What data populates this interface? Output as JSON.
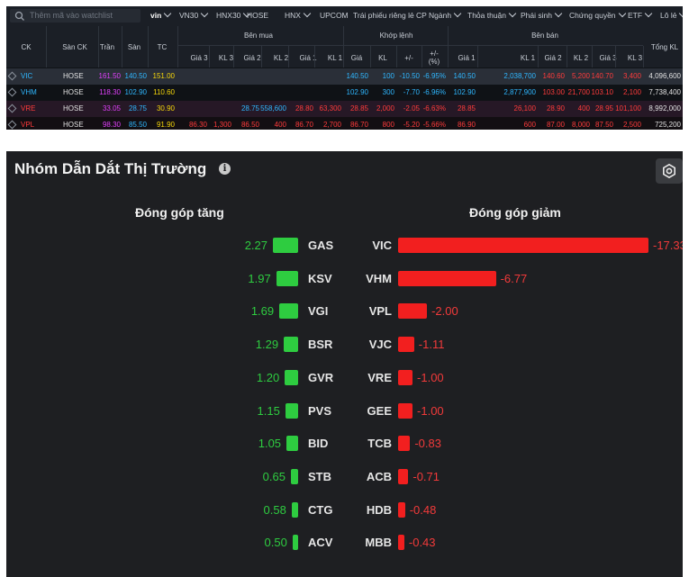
{
  "board": {
    "search": {
      "placeholder": "Thêm mã vào watchlist"
    },
    "menu": [
      {
        "label": "vin",
        "active": true
      },
      {
        "label": "VN30"
      },
      {
        "label": "HNX30"
      },
      {
        "label": "HOSE"
      },
      {
        "label": "HNX"
      },
      {
        "label": "UPCOM"
      },
      {
        "label": "Trái phiếu riêng lẻ"
      },
      {
        "label": "CP Ngành"
      },
      {
        "label": "Thỏa thuận"
      },
      {
        "label": "Phái sinh"
      },
      {
        "label": "Chứng quyền"
      },
      {
        "label": "ETF"
      },
      {
        "label": "Lô lẻ"
      }
    ],
    "headers": {
      "ck": "CK",
      "san": "Sàn CK",
      "tran": "Trần",
      "sanp": "Sàn",
      "tc": "TC",
      "ben_mua": "Bên mua",
      "khop_lenh": "Khớp lệnh",
      "ben_ban": "Bên bán",
      "tong_kl": "Tổng KL",
      "buy_cols": [
        "Giá 3",
        "KL 3",
        "Giá 2",
        "KL 2",
        "Giá 1",
        "KL 1"
      ],
      "match_cols": [
        "Giá",
        "KL",
        "+/-",
        "+/-\n(%)"
      ],
      "sell_cols": [
        "Giá 1",
        "KL 1",
        "Giá 2",
        "KL 2",
        "Giá 3",
        "KL 3"
      ]
    },
    "colors": {
      "ceiling": "#e040fb",
      "floor": "#2fb7ff",
      "ref": "#f5d60a",
      "down": "#ff3b3b",
      "up": "#2ecc40",
      "neutral": "#e0e0e0"
    },
    "rows": [
      {
        "ck": "VIC",
        "san": "HOSE",
        "tran": "161.50",
        "sanp": "140.50",
        "tc": "151.00",
        "buy": [
          "",
          "",
          "",
          "",
          "",
          ""
        ],
        "match": [
          "140.50",
          "100",
          "-10.50",
          "-6.95%"
        ],
        "sell": [
          "140.50",
          "2,038,700",
          "140.60",
          "5,200",
          "140.70",
          "3,400"
        ],
        "tong": "4,096,600"
      },
      {
        "ck": "VHM",
        "san": "HOSE",
        "tran": "118.30",
        "sanp": "102.90",
        "tc": "110.60",
        "buy": [
          "",
          "",
          "",
          "",
          "",
          ""
        ],
        "match": [
          "102.90",
          "300",
          "-7.70",
          "-6.96%"
        ],
        "sell": [
          "102.90",
          "2,877,900",
          "103.00",
          "21,700",
          "103.10",
          "2,100"
        ],
        "tong": "7,738,400"
      },
      {
        "ck": "VRE",
        "san": "HOSE",
        "tran": "33.05",
        "sanp": "28.75",
        "tc": "30.90",
        "buy": [
          "",
          "",
          "28.75",
          "558,600",
          "28.80",
          "63,300"
        ],
        "match": [
          "28.85",
          "2,000",
          "-2.05",
          "-6.63%"
        ],
        "sell": [
          "28.85",
          "26,100",
          "28.90",
          "400",
          "28.95",
          "101,100"
        ],
        "tong": "8,992,000"
      },
      {
        "ck": "VPL",
        "san": "HOSE",
        "tran": "98.30",
        "sanp": "85.50",
        "tc": "91.90",
        "buy": [
          "86.30",
          "1,300",
          "86.50",
          "400",
          "86.70",
          "2,700"
        ],
        "match": [
          "86.70",
          "800",
          "-5.20",
          "-5.66%"
        ],
        "sell": [
          "86.90",
          "600",
          "87.00",
          "8,000",
          "87.50",
          "2,500"
        ],
        "tong": "725,200"
      }
    ]
  },
  "panel": {
    "title": "Nhóm Dẫn Dắt Thị Trường",
    "info_icon": "info-icon",
    "settings_icon": "gear-icon",
    "gain_title": "Đóng góp tăng",
    "loss_title": "Đóng góp giảm",
    "gainers": [
      {
        "symbol": "GAS",
        "value": 2.27
      },
      {
        "symbol": "KSV",
        "value": 1.97
      },
      {
        "symbol": "VGI",
        "value": 1.69
      },
      {
        "symbol": "BSR",
        "value": 1.29
      },
      {
        "symbol": "GVR",
        "value": 1.2
      },
      {
        "symbol": "PVS",
        "value": 1.15
      },
      {
        "symbol": "BID",
        "value": 1.05
      },
      {
        "symbol": "STB",
        "value": 0.65
      },
      {
        "symbol": "CTG",
        "value": 0.58
      },
      {
        "symbol": "ACV",
        "value": 0.5
      }
    ],
    "losers": [
      {
        "symbol": "VIC",
        "value": -17.33
      },
      {
        "symbol": "VHM",
        "value": -6.77
      },
      {
        "symbol": "VPL",
        "value": -2.0
      },
      {
        "symbol": "VJC",
        "value": -1.11
      },
      {
        "symbol": "VRE",
        "value": -1.0
      },
      {
        "symbol": "GEE",
        "value": -1.0
      },
      {
        "symbol": "TCB",
        "value": -0.83
      },
      {
        "symbol": "ACB",
        "value": -0.71
      },
      {
        "symbol": "HDB",
        "value": -0.48
      },
      {
        "symbol": "MBB",
        "value": -0.43
      }
    ]
  }
}
